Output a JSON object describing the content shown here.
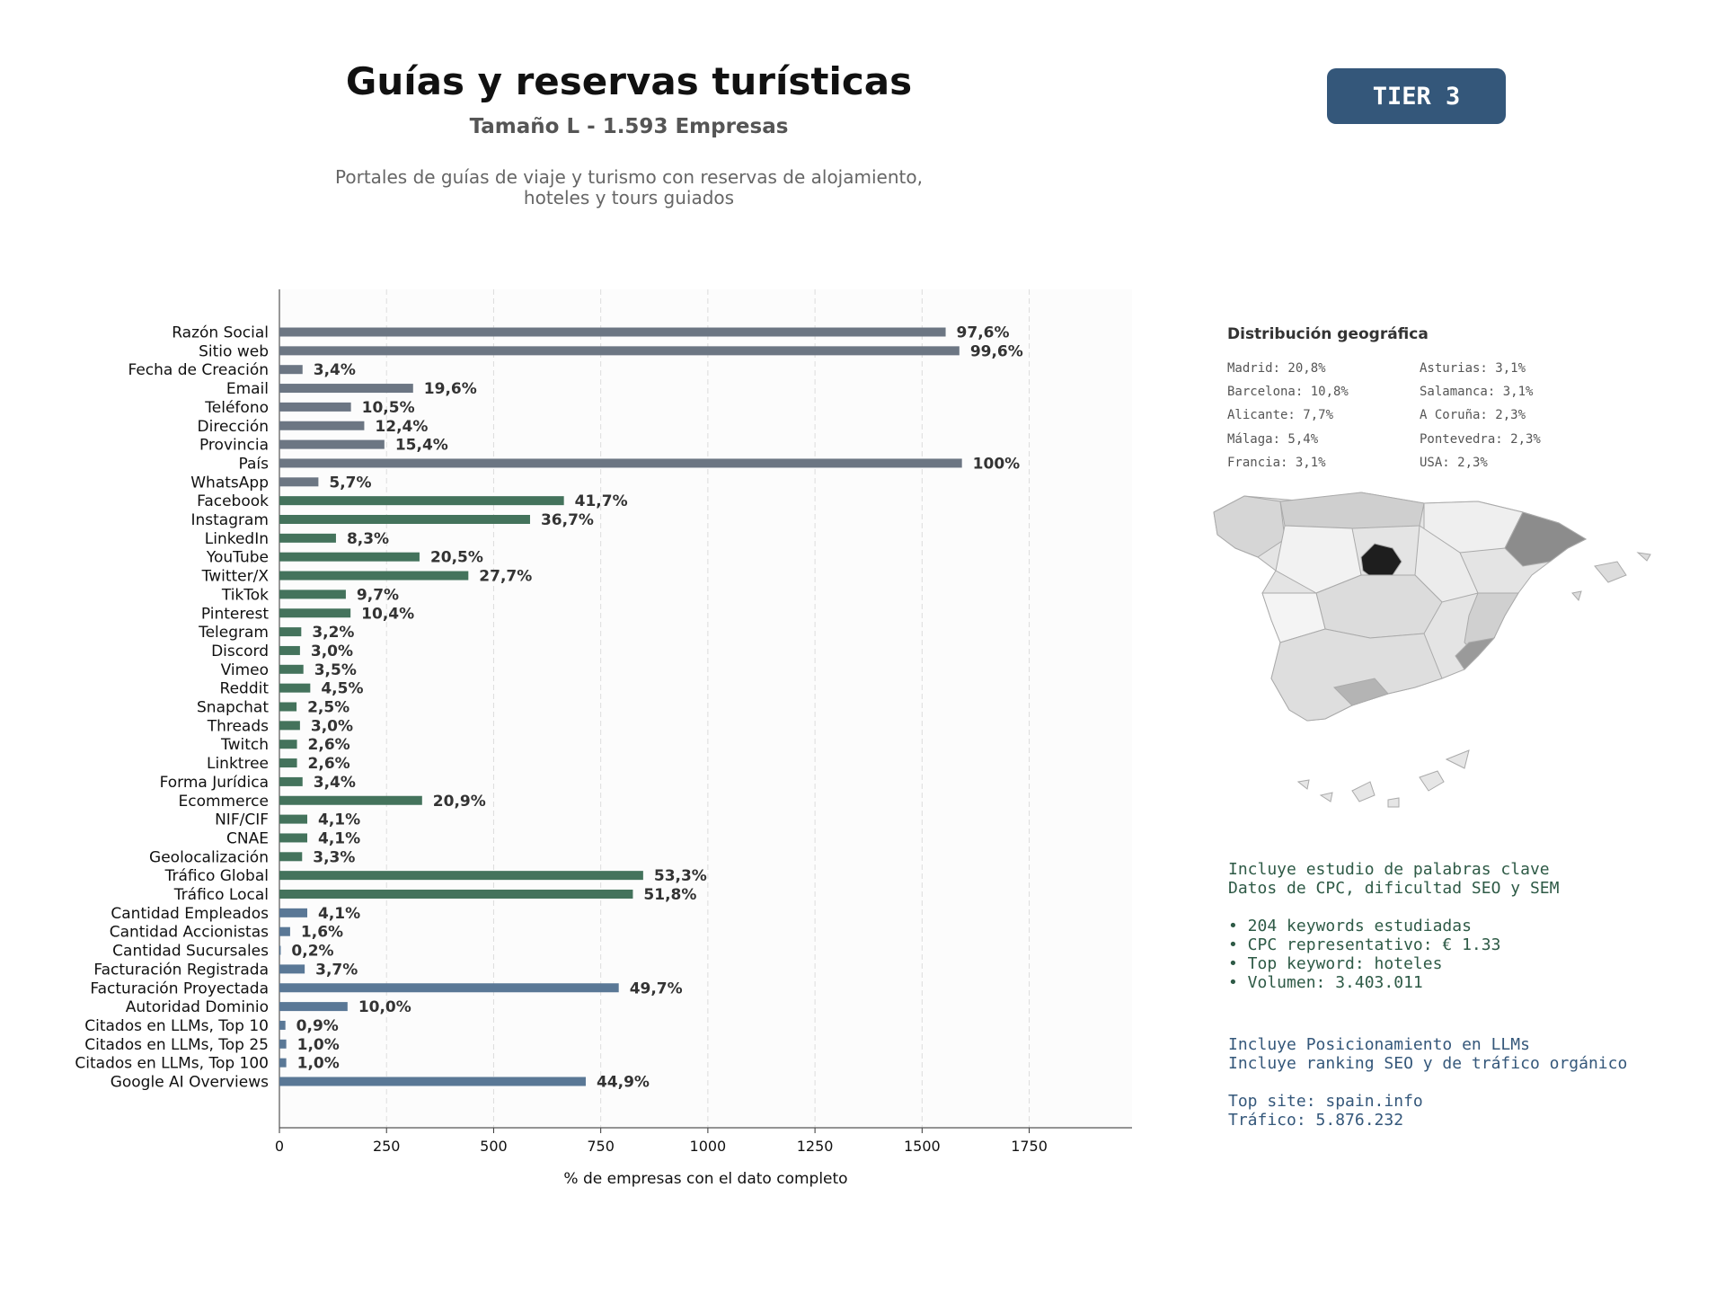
{
  "header": {
    "title": "Guías y reservas turísticas",
    "subtitle": "Tamaño L - 1.593 Empresas",
    "description_line1": "Portales de guías de viaje y turismo con reservas de alojamiento,",
    "description_line2": "hoteles y tours guiados",
    "tier": "TIER 3"
  },
  "colors": {
    "gray_bar": "#6c7683",
    "green_bar": "#44735c",
    "blue_bar": "#5a7896",
    "tier_bg": "#34577a"
  },
  "chart_data": {
    "type": "bar",
    "orientation": "horizontal",
    "xlabel": "% de empresas con el dato completo",
    "xlim": [
      0,
      1990
    ],
    "xticks": [
      0,
      250,
      500,
      750,
      1000,
      1250,
      1500,
      1750
    ],
    "grid": "vertical dashed",
    "categories": [
      "Razón Social",
      "Sitio web",
      "Fecha de Creación",
      "Email",
      "Teléfono",
      "Dirección",
      "Provincia",
      "País",
      "WhatsApp",
      "Facebook",
      "Instagram",
      "LinkedIn",
      "YouTube",
      "Twitter/X",
      "TikTok",
      "Pinterest",
      "Telegram",
      "Discord",
      "Vimeo",
      "Reddit",
      "Snapchat",
      "Threads",
      "Twitch",
      "Linktree",
      "Forma Jurídica",
      "Ecommerce",
      "NIF/CIF",
      "CNAE",
      "Geolocalización",
      "Tráfico Global",
      "Tráfico Local",
      "Cantidad Empleados",
      "Cantidad Accionistas",
      "Cantidad Sucursales",
      "Facturación Registrada",
      "Facturación Proyectada",
      "Autoridad Dominio",
      "Citados en LLMs, Top 10",
      "Citados en LLMs, Top 25",
      "Citados en LLMs, Top 100",
      "Google AI Overviews"
    ],
    "values": [
      1555,
      1587,
      54,
      312,
      167,
      198,
      245,
      1593,
      91,
      664,
      585,
      132,
      327,
      441,
      155,
      166,
      51,
      48,
      56,
      72,
      40,
      48,
      41,
      41,
      54,
      333,
      65,
      65,
      53,
      849,
      825,
      65,
      25,
      3,
      59,
      792,
      159,
      14,
      16,
      16,
      715
    ],
    "labels": [
      "97,6%",
      "99,6%",
      "3,4%",
      "19,6%",
      "10,5%",
      "12,4%",
      "15,4%",
      "100%",
      "5,7%",
      "41,7%",
      "36,7%",
      "8,3%",
      "20,5%",
      "27,7%",
      "9,7%",
      "10,4%",
      "3,2%",
      "3,0%",
      "3,5%",
      "4,5%",
      "2,5%",
      "3,0%",
      "2,6%",
      "2,6%",
      "3,4%",
      "20,9%",
      "4,1%",
      "4,1%",
      "3,3%",
      "53,3%",
      "51,8%",
      "4,1%",
      "1,6%",
      "0,2%",
      "3,7%",
      "49,7%",
      "10,0%",
      "0,9%",
      "1,0%",
      "1,0%",
      "44,9%"
    ],
    "groups": [
      "gray",
      "gray",
      "gray",
      "gray",
      "gray",
      "gray",
      "gray",
      "gray",
      "gray",
      "green",
      "green",
      "green",
      "green",
      "green",
      "green",
      "green",
      "green",
      "green",
      "green",
      "green",
      "green",
      "green",
      "green",
      "green",
      "green",
      "green",
      "green",
      "green",
      "green",
      "green",
      "green",
      "blue",
      "blue",
      "blue",
      "blue",
      "blue",
      "blue",
      "blue",
      "blue",
      "blue",
      "blue"
    ]
  },
  "geo": {
    "title": "Distribución geográfica",
    "left": [
      "Madrid: 20,8%",
      "Barcelona: 10,8%",
      "Alicante: 7,7%",
      "Málaga: 5,4%",
      "Francia: 3,1%"
    ],
    "right": [
      "Asturias: 3,1%",
      "Salamanca: 3,1%",
      "A Coruña: 2,3%",
      "Pontevedra: 2,3%",
      "USA: 2,3%"
    ]
  },
  "seo": {
    "line1": "Incluye estudio de palabras clave",
    "line2": "Datos de CPC, dificultad SEO y SEM",
    "bullet1": "• 204 keywords estudiadas",
    "bullet2": "• CPC representativo: € 1.33",
    "bullet3": "• Top keyword: hoteles",
    "bullet4": "• Volumen: 3.403.011"
  },
  "llm": {
    "line1": "Incluye Posicionamiento en LLMs",
    "line2": "Incluye ranking SEO y de tráfico orgánico",
    "top_site": "Top site: spain.info",
    "traffic": "Tráfico: 5.876.232"
  }
}
